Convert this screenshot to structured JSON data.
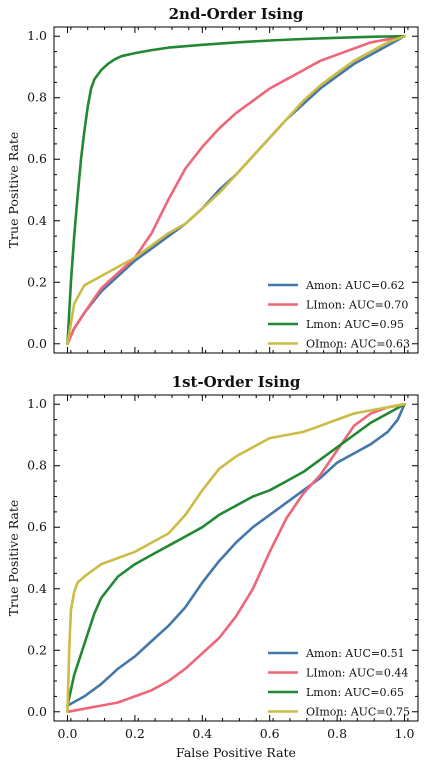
{
  "chart_data": [
    {
      "type": "line",
      "title": "2nd-Order Ising",
      "xlabel": "",
      "ylabel": "True Positive Rate",
      "xlim": [
        -0.04,
        1.04
      ],
      "ylim": [
        -0.03,
        1.03
      ],
      "x_ticks": [
        "",
        "",
        "",
        "",
        "",
        ""
      ],
      "y_ticks": [
        "0.0",
        "0.2",
        "0.4",
        "0.6",
        "0.8",
        "1.0"
      ],
      "grid": false,
      "legend_position": "bottom-right",
      "series": [
        {
          "name": "Amon: AUC=0.62",
          "color": "#4477aa",
          "x": [
            0,
            0.02,
            0.05,
            0.1,
            0.15,
            0.2,
            0.25,
            0.3,
            0.35,
            0.4,
            0.45,
            0.5,
            0.55,
            0.6,
            0.65,
            0.7,
            0.75,
            0.8,
            0.85,
            0.9,
            0.95,
            1.0
          ],
          "y": [
            0,
            0.05,
            0.1,
            0.17,
            0.22,
            0.27,
            0.31,
            0.35,
            0.39,
            0.44,
            0.5,
            0.55,
            0.61,
            0.67,
            0.73,
            0.78,
            0.83,
            0.87,
            0.91,
            0.94,
            0.97,
            1.0
          ]
        },
        {
          "name": "LImon: AUC=0.70",
          "color": "#ee6677",
          "x": [
            0,
            0.02,
            0.05,
            0.1,
            0.15,
            0.2,
            0.25,
            0.3,
            0.35,
            0.4,
            0.45,
            0.5,
            0.55,
            0.6,
            0.65,
            0.7,
            0.75,
            0.8,
            0.85,
            0.9,
            0.95,
            1.0
          ],
          "y": [
            0,
            0.05,
            0.1,
            0.18,
            0.23,
            0.28,
            0.36,
            0.47,
            0.57,
            0.64,
            0.7,
            0.75,
            0.79,
            0.83,
            0.86,
            0.89,
            0.92,
            0.94,
            0.96,
            0.98,
            0.99,
            1.0
          ]
        },
        {
          "name": "Lmon: AUC=0.95",
          "color": "#228833",
          "x": [
            0,
            0.005,
            0.01,
            0.02,
            0.03,
            0.04,
            0.05,
            0.06,
            0.07,
            0.08,
            0.1,
            0.12,
            0.14,
            0.16,
            0.2,
            0.25,
            0.3,
            0.4,
            0.5,
            0.6,
            0.7,
            0.8,
            0.9,
            1.0
          ],
          "y": [
            0,
            0.1,
            0.2,
            0.35,
            0.48,
            0.6,
            0.69,
            0.77,
            0.83,
            0.86,
            0.89,
            0.91,
            0.925,
            0.935,
            0.945,
            0.955,
            0.963,
            0.972,
            0.98,
            0.986,
            0.991,
            0.995,
            0.998,
            1.0
          ]
        },
        {
          "name": "OImon: AUC=0.63",
          "color": "#ccbb44",
          "x": [
            0,
            0.02,
            0.05,
            0.1,
            0.15,
            0.2,
            0.25,
            0.3,
            0.35,
            0.4,
            0.45,
            0.5,
            0.55,
            0.6,
            0.65,
            0.7,
            0.75,
            0.8,
            0.85,
            0.9,
            0.95,
            1.0
          ],
          "y": [
            0,
            0.13,
            0.19,
            0.22,
            0.25,
            0.28,
            0.32,
            0.36,
            0.39,
            0.44,
            0.49,
            0.55,
            0.61,
            0.67,
            0.73,
            0.79,
            0.84,
            0.88,
            0.92,
            0.95,
            0.98,
            1.0
          ]
        }
      ]
    },
    {
      "type": "line",
      "title": "1st-Order Ising",
      "xlabel": "False Positive Rate",
      "ylabel": "True Positive Rate",
      "xlim": [
        -0.04,
        1.04
      ],
      "ylim": [
        -0.03,
        1.03
      ],
      "x_ticks": [
        "0.0",
        "0.2",
        "0.4",
        "0.6",
        "0.8",
        "1.0"
      ],
      "y_ticks": [
        "0.0",
        "0.2",
        "0.4",
        "0.6",
        "0.8",
        "1.0"
      ],
      "grid": false,
      "legend_position": "bottom-right",
      "series": [
        {
          "name": "Amon: AUC=0.51",
          "color": "#4477aa",
          "x": [
            0,
            0.05,
            0.1,
            0.15,
            0.2,
            0.25,
            0.3,
            0.35,
            0.4,
            0.45,
            0.5,
            0.55,
            0.6,
            0.65,
            0.7,
            0.75,
            0.8,
            0.85,
            0.9,
            0.95,
            0.98,
            1.0
          ],
          "y": [
            0.02,
            0.05,
            0.09,
            0.14,
            0.18,
            0.23,
            0.28,
            0.34,
            0.42,
            0.49,
            0.55,
            0.6,
            0.64,
            0.68,
            0.72,
            0.76,
            0.81,
            0.84,
            0.87,
            0.91,
            0.95,
            1.0
          ]
        },
        {
          "name": "LImon: AUC=0.44",
          "color": "#ee6677",
          "x": [
            0,
            0.05,
            0.1,
            0.15,
            0.2,
            0.25,
            0.3,
            0.35,
            0.4,
            0.45,
            0.5,
            0.55,
            0.6,
            0.65,
            0.7,
            0.75,
            0.8,
            0.85,
            0.9,
            0.95,
            1.0
          ],
          "y": [
            0,
            0.01,
            0.02,
            0.03,
            0.05,
            0.07,
            0.1,
            0.14,
            0.19,
            0.24,
            0.31,
            0.4,
            0.52,
            0.63,
            0.71,
            0.77,
            0.85,
            0.93,
            0.97,
            0.99,
            1.0
          ]
        },
        {
          "name": "Lmon: AUC=0.65",
          "color": "#228833",
          "x": [
            0,
            0.02,
            0.05,
            0.08,
            0.1,
            0.15,
            0.2,
            0.25,
            0.3,
            0.35,
            0.4,
            0.45,
            0.5,
            0.55,
            0.6,
            0.65,
            0.7,
            0.75,
            0.8,
            0.85,
            0.9,
            0.95,
            1.0
          ],
          "y": [
            0.02,
            0.12,
            0.22,
            0.32,
            0.37,
            0.44,
            0.48,
            0.51,
            0.54,
            0.57,
            0.6,
            0.64,
            0.67,
            0.7,
            0.72,
            0.75,
            0.78,
            0.82,
            0.86,
            0.9,
            0.94,
            0.97,
            1.0
          ]
        },
        {
          "name": "OImon: AUC=0.75",
          "color": "#ccbb44",
          "x": [
            0,
            0.005,
            0.01,
            0.02,
            0.03,
            0.05,
            0.1,
            0.15,
            0.2,
            0.25,
            0.3,
            0.35,
            0.4,
            0.45,
            0.5,
            0.55,
            0.6,
            0.65,
            0.7,
            0.75,
            0.8,
            0.85,
            0.9,
            0.95,
            1.0
          ],
          "y": [
            0,
            0.2,
            0.33,
            0.39,
            0.42,
            0.44,
            0.48,
            0.5,
            0.52,
            0.55,
            0.58,
            0.64,
            0.72,
            0.79,
            0.83,
            0.86,
            0.89,
            0.9,
            0.91,
            0.93,
            0.95,
            0.97,
            0.98,
            0.99,
            1.0
          ]
        }
      ]
    }
  ]
}
